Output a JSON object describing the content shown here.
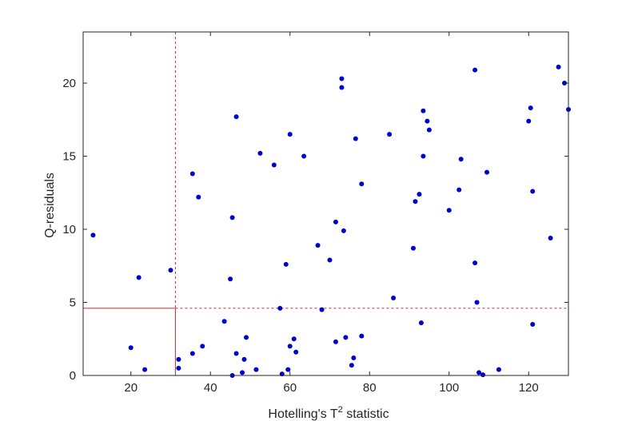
{
  "chart_data": {
    "type": "scatter",
    "xlabel_main": "Hotelling's T",
    "xlabel_sup": "2",
    "xlabel_tail": " statistic",
    "ylabel": "Q-residuals",
    "xlim": [
      8,
      130
    ],
    "ylim": [
      0,
      23.5
    ],
    "xticks": [
      20,
      40,
      60,
      80,
      100,
      120
    ],
    "yticks": [
      0,
      5,
      10,
      15,
      20
    ],
    "grid": false,
    "point_color": "#0000cc",
    "threshold_color": "#d62728",
    "thresholds": {
      "t2_limit": 31.2,
      "q_limit": 4.6
    },
    "points": [
      {
        "x": 10.5,
        "y": 9.6
      },
      {
        "x": 20,
        "y": 1.9
      },
      {
        "x": 22,
        "y": 6.7
      },
      {
        "x": 23.5,
        "y": 0.4
      },
      {
        "x": 30,
        "y": 7.2
      },
      {
        "x": 32,
        "y": 1.1
      },
      {
        "x": 32,
        "y": 0.5
      },
      {
        "x": 35.5,
        "y": 13.8
      },
      {
        "x": 35.5,
        "y": 1.5
      },
      {
        "x": 37,
        "y": 12.2
      },
      {
        "x": 38,
        "y": 2.0
      },
      {
        "x": 43.5,
        "y": 3.7
      },
      {
        "x": 45,
        "y": 6.6
      },
      {
        "x": 45.5,
        "y": 10.8
      },
      {
        "x": 45.5,
        "y": 0.0
      },
      {
        "x": 46.5,
        "y": 17.7
      },
      {
        "x": 46.5,
        "y": 1.5
      },
      {
        "x": 48,
        "y": 0.2
      },
      {
        "x": 48.5,
        "y": 1.1
      },
      {
        "x": 49,
        "y": 2.6
      },
      {
        "x": 51.5,
        "y": 0.4
      },
      {
        "x": 52.5,
        "y": 15.2
      },
      {
        "x": 56,
        "y": 14.4
      },
      {
        "x": 57.5,
        "y": 4.6
      },
      {
        "x": 58,
        "y": 0.1
      },
      {
        "x": 59,
        "y": 7.6
      },
      {
        "x": 59.5,
        "y": 0.4
      },
      {
        "x": 60,
        "y": 16.5
      },
      {
        "x": 60,
        "y": 2.0
      },
      {
        "x": 61,
        "y": 2.5
      },
      {
        "x": 61.5,
        "y": 1.6
      },
      {
        "x": 63.5,
        "y": 15.0
      },
      {
        "x": 67,
        "y": 8.9
      },
      {
        "x": 68,
        "y": 4.5
      },
      {
        "x": 70,
        "y": 7.9
      },
      {
        "x": 71.5,
        "y": 10.5
      },
      {
        "x": 71.5,
        "y": 2.3
      },
      {
        "x": 73,
        "y": 20.3
      },
      {
        "x": 73,
        "y": 19.7
      },
      {
        "x": 73.5,
        "y": 9.9
      },
      {
        "x": 74,
        "y": 2.6
      },
      {
        "x": 75.5,
        "y": 0.7
      },
      {
        "x": 76,
        "y": 1.2
      },
      {
        "x": 76.5,
        "y": 16.2
      },
      {
        "x": 78,
        "y": 13.1
      },
      {
        "x": 78,
        "y": 2.7
      },
      {
        "x": 85,
        "y": 16.5
      },
      {
        "x": 86,
        "y": 5.3
      },
      {
        "x": 91,
        "y": 8.7
      },
      {
        "x": 91.5,
        "y": 11.9
      },
      {
        "x": 92.5,
        "y": 12.4
      },
      {
        "x": 93,
        "y": 3.6
      },
      {
        "x": 93.5,
        "y": 18.1
      },
      {
        "x": 93.5,
        "y": 15.0
      },
      {
        "x": 94.5,
        "y": 17.4
      },
      {
        "x": 95,
        "y": 16.8
      },
      {
        "x": 100,
        "y": 11.3
      },
      {
        "x": 102.5,
        "y": 12.7
      },
      {
        "x": 103,
        "y": 14.8
      },
      {
        "x": 106.5,
        "y": 20.9
      },
      {
        "x": 106.5,
        "y": 7.7
      },
      {
        "x": 107,
        "y": 5.0
      },
      {
        "x": 107.5,
        "y": 0.2
      },
      {
        "x": 108.5,
        "y": 0.05
      },
      {
        "x": 109.5,
        "y": 13.9
      },
      {
        "x": 112.5,
        "y": 0.4
      },
      {
        "x": 120,
        "y": 17.4
      },
      {
        "x": 120.5,
        "y": 18.3
      },
      {
        "x": 121,
        "y": 12.6
      },
      {
        "x": 121,
        "y": 3.5
      },
      {
        "x": 125.5,
        "y": 9.4
      },
      {
        "x": 127.5,
        "y": 21.1
      },
      {
        "x": 129,
        "y": 20.0
      },
      {
        "x": 130,
        "y": 18.2
      }
    ]
  }
}
